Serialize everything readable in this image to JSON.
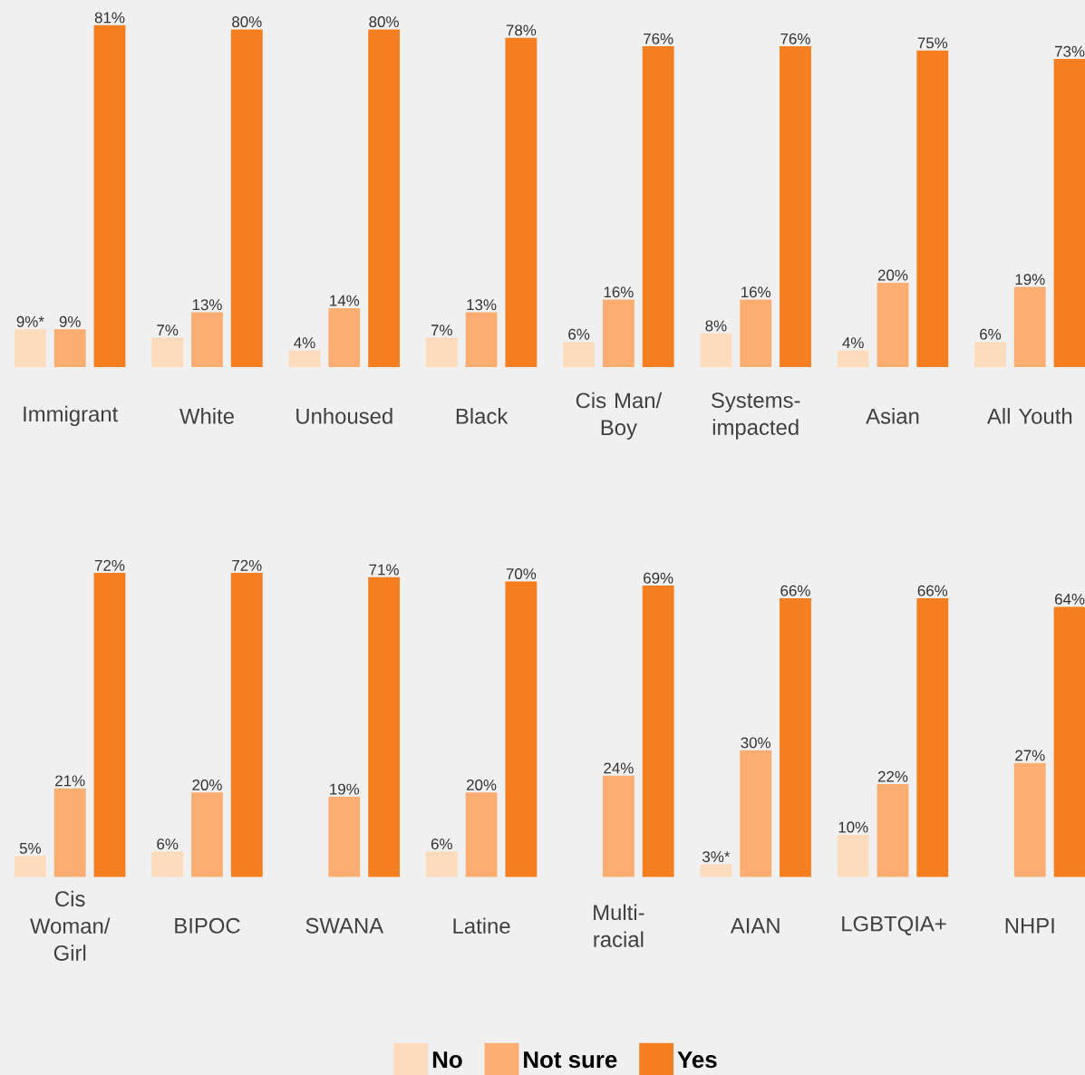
{
  "chart_data": [
    {
      "categories": [
        "Immigrant",
        "White",
        "Unhoused",
        "Black",
        "Cis Man/ Boy",
        "Systems-impacted",
        "Asian",
        "All Youth"
      ],
      "series": [
        {
          "color": "#fddcbe",
          "values": [
            9,
            7,
            4,
            7,
            6,
            8,
            4,
            6
          ],
          "value_labels": [
            "9%*",
            "7%",
            "4%",
            "7%",
            "6%",
            "8%",
            "4%",
            "6%"
          ]
        },
        {
          "color": "#fcae72",
          "values": [
            9,
            13,
            14,
            13,
            16,
            16,
            20,
            19
          ],
          "value_labels": [
            "9%",
            "13%",
            "14%",
            "13%",
            "16%",
            "16%",
            "20%",
            "19%"
          ]
        },
        {
          "color": "#f57f20",
          "values": [
            81,
            80,
            80,
            78,
            76,
            76,
            75,
            73
          ],
          "value_labels": [
            "81%",
            "80%",
            "80%",
            "78%",
            "76%",
            "76%",
            "75%",
            "73%"
          ]
        }
      ],
      "type": "bar"
    },
    {
      "type": "bar",
      "categories": [
        "Cis Woman/ Girl",
        "BIPOC",
        "SWANA",
        "Latine",
        "Multi-racial",
        "AIAN",
        "LGBTQIA+",
        "NHPI"
      ],
      "series": [
        {
          "name": "No",
          "color": "#fddcbe",
          "values": [
            5,
            6,
            null,
            6,
            null,
            3,
            10,
            null
          ],
          "value_labels": [
            "5%",
            "6%",
            null,
            "6%",
            null,
            "3%*",
            "10%",
            null
          ]
        },
        {
          "name": "Not sure",
          "color": "#fcae72",
          "values": [
            21,
            20,
            19,
            20,
            24,
            30,
            22,
            27
          ],
          "value_labels": [
            "21%",
            "20%",
            "19%",
            "20%",
            "24%",
            "30%",
            "22%",
            "27%"
          ]
        },
        {
          "name": "Yes",
          "color": "#f57f20",
          "values": [
            72,
            72,
            71,
            70,
            69,
            66,
            66,
            64
          ],
          "value_labels": [
            "72%",
            "72%",
            "71%",
            "70%",
            "69%",
            "66%",
            "66%",
            "64%"
          ]
        }
      ],
      "legend": "bottom"
    }
  ]
}
